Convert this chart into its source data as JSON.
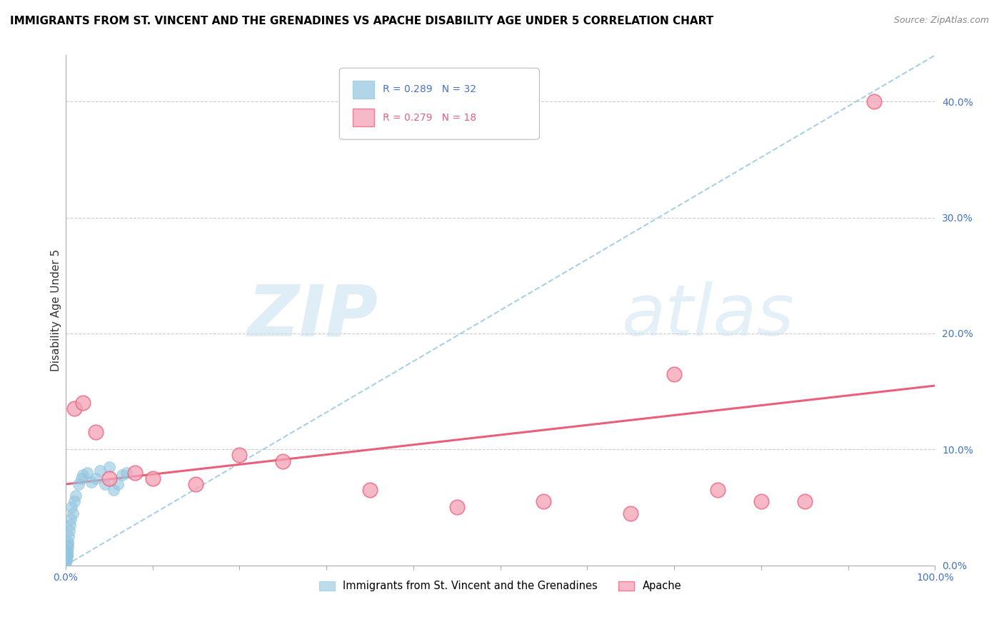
{
  "title": "IMMIGRANTS FROM ST. VINCENT AND THE GRENADINES VS APACHE DISABILITY AGE UNDER 5 CORRELATION CHART",
  "source": "Source: ZipAtlas.com",
  "ylabel": "Disability Age Under 5",
  "xlim": [
    0,
    100
  ],
  "ylim": [
    0,
    44
  ],
  "yticks": [
    0,
    10,
    20,
    30,
    40
  ],
  "ytick_labels": [
    "0.0%",
    "10.0%",
    "20.0%",
    "30.0%",
    "40.0%"
  ],
  "blue_R": 0.289,
  "blue_N": 32,
  "pink_R": 0.279,
  "pink_N": 18,
  "blue_color": "#92c5de",
  "pink_color": "#f4a0b5",
  "blue_label": "Immigrants from St. Vincent and the Grenadines",
  "pink_label": "Apache",
  "watermark_zip": "ZIP",
  "watermark_atlas": "atlas",
  "blue_points_x": [
    0.05,
    0.08,
    0.1,
    0.12,
    0.15,
    0.18,
    0.2,
    0.22,
    0.25,
    0.28,
    0.3,
    0.35,
    0.4,
    0.5,
    0.6,
    0.7,
    0.8,
    1.0,
    1.2,
    1.5,
    1.8,
    2.0,
    2.5,
    3.0,
    3.5,
    4.0,
    4.5,
    5.0,
    5.5,
    6.0,
    6.5,
    7.0
  ],
  "blue_points_y": [
    0.3,
    0.5,
    0.4,
    0.6,
    0.8,
    1.0,
    0.9,
    1.2,
    1.5,
    1.8,
    2.0,
    2.5,
    3.0,
    3.5,
    4.0,
    5.0,
    4.5,
    5.5,
    6.0,
    7.0,
    7.5,
    7.8,
    8.0,
    7.2,
    7.5,
    8.2,
    7.0,
    8.5,
    6.5,
    7.0,
    7.8,
    8.0
  ],
  "pink_points_x": [
    1.0,
    2.0,
    3.5,
    5.0,
    8.0,
    10.0,
    15.0,
    20.0,
    25.0,
    35.0,
    45.0,
    55.0,
    65.0,
    70.0,
    75.0,
    80.0,
    85.0,
    93.0
  ],
  "pink_points_y": [
    13.5,
    14.0,
    11.5,
    7.5,
    8.0,
    7.5,
    7.0,
    9.5,
    9.0,
    6.5,
    5.0,
    5.5,
    4.5,
    16.5,
    6.5,
    5.5,
    5.5,
    40.0
  ],
  "blue_trend_x0": 0,
  "blue_trend_y0": 0,
  "blue_trend_x1": 100,
  "blue_trend_y1": 44,
  "pink_trend_x0": 0,
  "pink_trend_y0": 7.0,
  "pink_trend_x1": 100,
  "pink_trend_y1": 15.5
}
